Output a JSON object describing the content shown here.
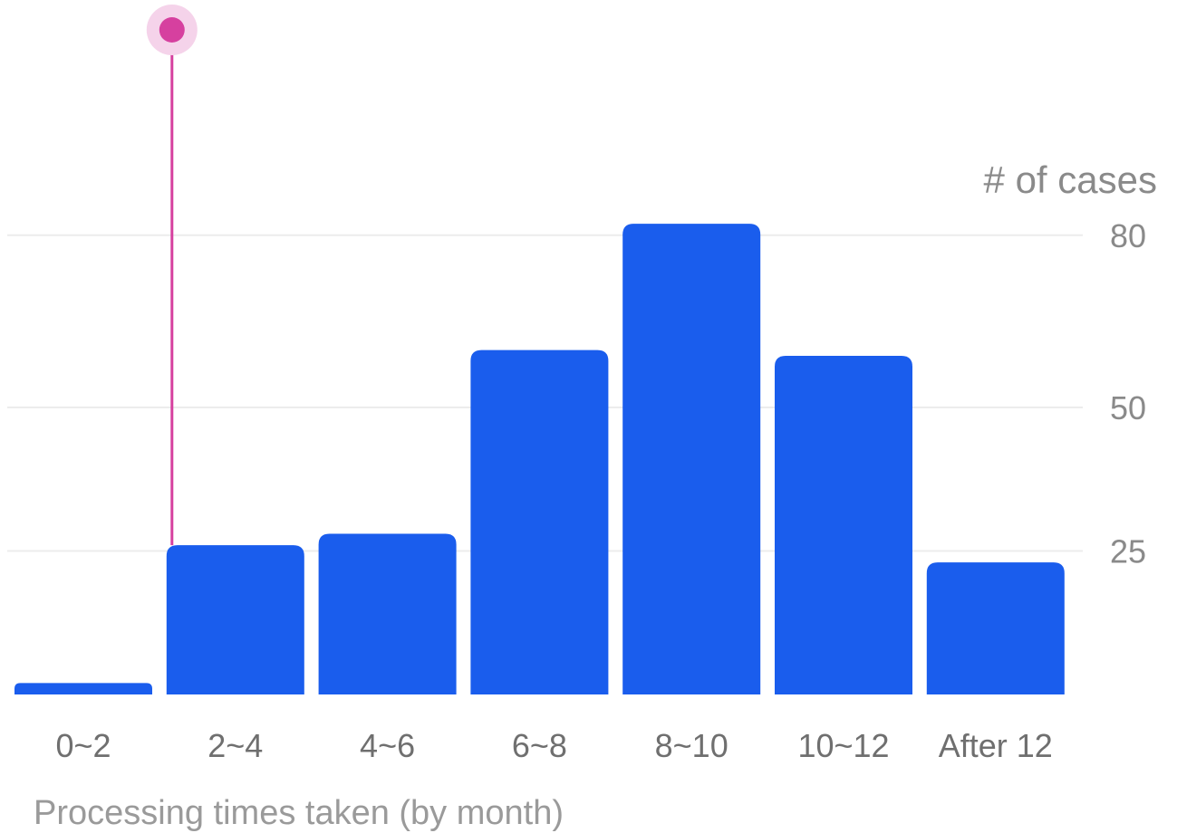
{
  "chart_data": {
    "type": "bar",
    "ylabel": "# of cases",
    "xlabel": "Processing times taken (by month)",
    "categories": [
      "0~2",
      "2~4",
      "4~6",
      "6~8",
      "8~10",
      "10~12",
      "After 12"
    ],
    "values": [
      2,
      26,
      28,
      60,
      82,
      59,
      23
    ],
    "yticks": [
      25,
      50,
      80
    ],
    "ylim": [
      0,
      80
    ],
    "grid": true,
    "bar_color": "#1a5ded",
    "marker": {
      "category": "2~4",
      "color": "#d6409f",
      "halo_color": "#f5d3ea"
    }
  }
}
